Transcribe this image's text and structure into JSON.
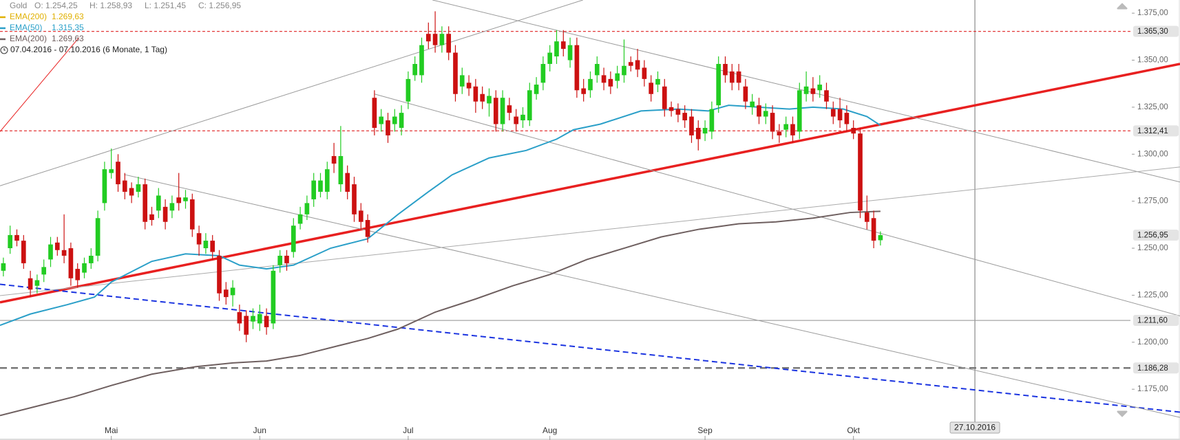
{
  "chart_data": {
    "type": "candlestick",
    "instrument": "Gold",
    "ohlc_labels": [
      "O: 1.254,25",
      "H: 1.258,93",
      "L: 1.251,45",
      "C: 1.256,95"
    ],
    "legend_only": [
      {
        "name": "EMA(200)",
        "value_label": "1.269,63",
        "color": "#e0b000"
      }
    ],
    "period": "07.04.2016 - 07.10.2016 (6 Monate, 1 Tag)",
    "xlim": [
      -0.5,
      174.4
    ],
    "ylim": [
      1148,
      1382
    ],
    "xticks": [
      {
        "value": 16,
        "label": "Mai"
      },
      {
        "value": 38,
        "label": "Jun"
      },
      {
        "value": 60,
        "label": "Jul"
      },
      {
        "value": 81,
        "label": "Aug"
      },
      {
        "value": 104,
        "label": "Sep"
      },
      {
        "value": 126,
        "label": "Okt"
      }
    ],
    "yticks": [
      {
        "value": 1175,
        "label": "1.175,00"
      },
      {
        "value": 1200,
        "label": "1.200,00"
      },
      {
        "value": 1225,
        "label": "1.225,00"
      },
      {
        "value": 1250,
        "label": "1.250,00"
      },
      {
        "value": 1275,
        "label": "1.275,00"
      },
      {
        "value": 1300,
        "label": "1.300,00"
      },
      {
        "value": 1325,
        "label": "1.325,00"
      },
      {
        "value": 1350,
        "label": "1.350,00"
      },
      {
        "value": 1375,
        "label": "1.375,00"
      }
    ],
    "candles": {
      "up_color": "#22cc22",
      "down_color": "#cc1111",
      "open": [
        1238,
        1250,
        1257,
        1254,
        1234,
        1230,
        1236,
        1244,
        1253,
        1249,
        1250,
        1239,
        1237,
        1242,
        1246,
        1274,
        1290,
        1296,
        1286,
        1282,
        1280,
        1284,
        1268,
        1270,
        1272,
        1270,
        1277,
        1275,
        1276,
        1258,
        1250,
        1254,
        1246,
        1228,
        1225,
        1216,
        1214,
        1211,
        1210,
        1214,
        1210,
        1241,
        1246,
        1248,
        1263,
        1268,
        1276,
        1280,
        1280,
        1299,
        1284,
        1290,
        1284,
        1270,
        1265,
        1330,
        1316,
        1318,
        1316,
        1314,
        1328,
        1342,
        1342,
        1364,
        1364,
        1358,
        1364,
        1354,
        1336,
        1338,
        1336,
        1332,
        1327,
        1330,
        1316,
        1326,
        1320,
        1318,
        1318,
        1332,
        1338,
        1348,
        1352,
        1360,
        1350,
        1358,
        1335,
        1334,
        1342,
        1342,
        1340,
        1339,
        1342,
        1349,
        1350,
        1346,
        1338,
        1337,
        1336,
        1325,
        1324,
        1322,
        1320,
        1314,
        1311,
        1312,
        1326,
        1348,
        1344,
        1344,
        1336,
        1325,
        1326,
        1320,
        1322,
        1312,
        1313,
        1316,
        1312,
        1332,
        1335,
        1334,
        1334,
        1324,
        1324,
        1322,
        1314,
        1311,
        1269,
        1266,
        1254.25
      ],
      "high": [
        1245,
        1262,
        1260,
        1257,
        1238,
        1236,
        1244,
        1256,
        1256,
        1268,
        1253,
        1242,
        1245,
        1250,
        1270,
        1296,
        1303,
        1300,
        1290,
        1285,
        1288,
        1287,
        1272,
        1282,
        1276,
        1278,
        1290,
        1281,
        1279,
        1262,
        1258,
        1257,
        1249,
        1232,
        1233,
        1220,
        1217,
        1218,
        1220,
        1218,
        1241,
        1249,
        1249,
        1266,
        1272,
        1278,
        1290,
        1290,
        1296,
        1306,
        1315,
        1294,
        1288,
        1274,
        1268,
        1334,
        1324,
        1322,
        1324,
        1326,
        1344,
        1352,
        1362,
        1370,
        1376,
        1368,
        1368,
        1358,
        1346,
        1342,
        1340,
        1336,
        1335,
        1334,
        1334,
        1330,
        1324,
        1325,
        1338,
        1341,
        1352,
        1358,
        1366,
        1366,
        1362,
        1362,
        1340,
        1344,
        1352,
        1346,
        1344,
        1347,
        1361,
        1352,
        1356,
        1350,
        1342,
        1344,
        1340,
        1328,
        1327,
        1326,
        1324,
        1318,
        1318,
        1328,
        1352,
        1352,
        1348,
        1348,
        1340,
        1332,
        1330,
        1327,
        1326,
        1316,
        1320,
        1320,
        1338,
        1344,
        1341,
        1342,
        1338,
        1328,
        1330,
        1326,
        1318,
        1314,
        1278,
        1270,
        1258.93
      ],
      "low": [
        1235,
        1247,
        1251,
        1239,
        1224,
        1226,
        1232,
        1240,
        1246,
        1242,
        1230,
        1229,
        1234,
        1239,
        1243,
        1270,
        1287,
        1280,
        1276,
        1274,
        1277,
        1260,
        1262,
        1266,
        1260,
        1266,
        1270,
        1271,
        1256,
        1246,
        1247,
        1244,
        1222,
        1220,
        1219,
        1206,
        1200,
        1207,
        1206,
        1204,
        1207,
        1237,
        1238,
        1245,
        1260,
        1265,
        1272,
        1277,
        1276,
        1290,
        1280,
        1276,
        1264,
        1260,
        1253,
        1310,
        1312,
        1306,
        1312,
        1310,
        1324,
        1339,
        1338,
        1356,
        1354,
        1354,
        1350,
        1328,
        1332,
        1331,
        1322,
        1324,
        1320,
        1312,
        1312,
        1318,
        1312,
        1314,
        1315,
        1329,
        1334,
        1344,
        1348,
        1352,
        1346,
        1330,
        1328,
        1330,
        1338,
        1334,
        1332,
        1335,
        1338,
        1344,
        1341,
        1336,
        1328,
        1333,
        1320,
        1320,
        1317,
        1314,
        1306,
        1302,
        1307,
        1308,
        1322,
        1338,
        1334,
        1334,
        1324,
        1321,
        1316,
        1316,
        1308,
        1306,
        1309,
        1306,
        1308,
        1328,
        1328,
        1330,
        1324,
        1316,
        1314,
        1312,
        1308,
        1266,
        1260,
        1250,
        1251.45
      ],
      "close": [
        1242,
        1257,
        1254,
        1242,
        1228,
        1233,
        1240,
        1252,
        1249,
        1246,
        1234,
        1233,
        1242,
        1246,
        1266,
        1292,
        1292,
        1284,
        1280,
        1278,
        1284,
        1264,
        1265,
        1278,
        1264,
        1274,
        1274,
        1277,
        1260,
        1252,
        1254,
        1248,
        1226,
        1224,
        1229,
        1210,
        1204,
        1214,
        1215,
        1208,
        1238,
        1246,
        1242,
        1262,
        1268,
        1274,
        1286,
        1286,
        1292,
        1295,
        1299,
        1280,
        1268,
        1264,
        1256,
        1314,
        1320,
        1310,
        1320,
        1322,
        1340,
        1348,
        1358,
        1360,
        1358,
        1364,
        1354,
        1332,
        1342,
        1335,
        1328,
        1328,
        1331,
        1316,
        1330,
        1322,
        1316,
        1321,
        1334,
        1337,
        1348,
        1354,
        1360,
        1356,
        1358,
        1334,
        1332,
        1340,
        1348,
        1338,
        1336,
        1343,
        1347,
        1347,
        1345,
        1340,
        1332,
        1340,
        1324,
        1323,
        1321,
        1318,
        1310,
        1308,
        1314,
        1324,
        1348,
        1342,
        1338,
        1338,
        1328,
        1328,
        1320,
        1323,
        1312,
        1310,
        1316,
        1310,
        1334,
        1336,
        1332,
        1337,
        1328,
        1320,
        1318,
        1316,
        1311,
        1270,
        1264,
        1254,
        1256.95
      ]
    },
    "series": [
      {
        "name": "EMA(50)",
        "value_label": "1.315,35",
        "color": "#2a9fc8",
        "x": [
          -0.5,
          4,
          9.5,
          13.5,
          16,
          22,
          27,
          32,
          35,
          39,
          43,
          48.5,
          54,
          58.5,
          63,
          66.5,
          72,
          77.5,
          82,
          84.5,
          88.5,
          94.5,
          100,
          104.5,
          107.5,
          112,
          116.5,
          120,
          124.5,
          128,
          130
        ],
        "values": [
          1209,
          1215,
          1220,
          1224,
          1232,
          1243,
          1247,
          1246,
          1241,
          1239,
          1241,
          1250,
          1255,
          1268,
          1280,
          1289,
          1298,
          1302,
          1308,
          1313,
          1316,
          1323,
          1324,
          1323,
          1326,
          1325,
          1324,
          1325,
          1324,
          1320,
          1315.35
        ]
      },
      {
        "name": "EMA(200)",
        "value_label": "1.269,63",
        "color": "#6e5f5f",
        "x": [
          -0.5,
          5,
          10.5,
          16,
          22,
          28.5,
          34,
          39,
          44,
          49.5,
          54,
          58.5,
          64,
          70,
          75.5,
          81,
          86.5,
          92,
          97.5,
          103,
          109,
          114.5,
          120,
          125.5,
          130
        ],
        "values": [
          1161,
          1166,
          1171,
          1177,
          1183,
          1187,
          1189,
          1190,
          1193,
          1198,
          1202,
          1207,
          1216,
          1223,
          1230,
          1236,
          1244,
          1250,
          1256,
          1260,
          1263,
          1264,
          1266,
          1269,
          1269.63
        ]
      }
    ],
    "trendlines": [
      {
        "x": [
          -0.5,
          174.4
        ],
        "y": [
          1221.2,
          1348
        ],
        "color": "#e82020",
        "style": "thick"
      },
      {
        "x": [
          -0.5,
          174.4
        ],
        "y": [
          1230.8,
          1162.8
        ],
        "color": "#1a33e0",
        "style": "dashed"
      },
      {
        "x": [
          -0.5,
          85.9
        ],
        "y": [
          1283.2,
          1382
        ],
        "color": "#999999",
        "style": "thin"
      },
      {
        "x": [
          63.6,
          174.4
        ],
        "y": [
          1382,
          1285.2
        ],
        "color": "#999999",
        "style": "thin"
      },
      {
        "x": [
          17.9,
          174.4
        ],
        "y": [
          1289.2,
          1160
        ],
        "color": "#999999",
        "style": "thin"
      },
      {
        "x": [
          55,
          174.4
        ],
        "y": [
          1332,
          1214
        ],
        "color": "#999999",
        "style": "thin"
      },
      {
        "x": [
          -0.5,
          174.4
        ],
        "y": [
          1224.8,
          1293.2
        ],
        "color": "#aaaaaa",
        "style": "thin"
      },
      {
        "x": [
          -0.5,
          11.2
        ],
        "y": [
          1312,
          1362
        ],
        "color": "#e82020",
        "style": "thin"
      }
    ],
    "levels": [
      {
        "value": 1365.3,
        "label": "1.365,30",
        "color": "#e02020",
        "style": "dotted"
      },
      {
        "value": 1312.41,
        "label": "1.312,41",
        "color": "#e02020",
        "style": "dotted"
      },
      {
        "value": 1211.6,
        "label": "1.211,60",
        "color": "#999999",
        "style": "thin"
      },
      {
        "value": 1186.28,
        "label": "1.186,28",
        "color": "#777777",
        "style": "heavy-dashed"
      }
    ],
    "price_marker": {
      "value": 1256.95,
      "label": "1.256,95"
    },
    "cursor": {
      "x": 144,
      "label": "27.10.2016"
    }
  }
}
